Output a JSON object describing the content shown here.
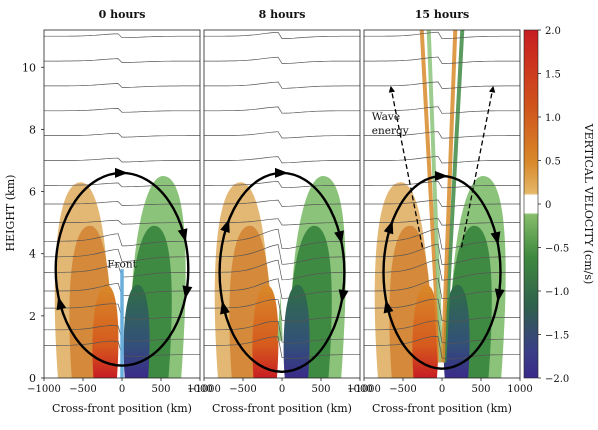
{
  "chart_data": {
    "type": "heatmap",
    "ylabel": "HEIGHT (km)",
    "xlabel": "Cross-front position (km)",
    "xlim": [
      -1000,
      1000
    ],
    "ylim": [
      0,
      11.2
    ],
    "yticks": [
      0,
      2,
      4,
      6,
      8,
      10
    ],
    "xticks": [
      -1000,
      -500,
      0,
      500,
      1000
    ],
    "xtick_labels": [
      "−1000",
      "−500",
      "0",
      "500",
      "1000"
    ],
    "colorbar": {
      "label": "VERTICAL VELOCITY (cm/s)",
      "range": [
        -2.0,
        2.0
      ],
      "ticks": [
        2.0,
        1.5,
        1.0,
        0.5,
        0,
        -0.5,
        -1.0,
        -1.5,
        -2.0
      ],
      "tick_labels": [
        "2.0",
        "1.5",
        "1.0",
        "0.5",
        "0",
        "−0.5",
        "−1.0",
        "−1.5",
        "−2.0"
      ],
      "positive_color": "#c81d22",
      "negative_color": "#3a2a8a",
      "neutral_color": "#ffffff"
    },
    "panels": [
      {
        "title": "0 hours",
        "annotations": [
          {
            "text": "Front",
            "x": 0,
            "y": 3.55
          }
        ],
        "front": {
          "x": 0,
          "y_top": 3.5
        },
        "circulation": {
          "cx": 0,
          "cy": 3.5,
          "rx": 850,
          "ry": 3.1,
          "direction": "clockwise"
        }
      },
      {
        "title": "8 hours",
        "annotations": [],
        "circulation": {
          "cx": 0,
          "cy": 3.4,
          "rx": 800,
          "ry": 3.2,
          "direction": "clockwise"
        }
      },
      {
        "title": "15 hours",
        "annotations": [
          {
            "text": "Wave",
            "x": -900,
            "y": 8.3
          },
          {
            "text": "energy",
            "x": -900,
            "y": 7.85
          }
        ],
        "wave_energy_arrows": [
          {
            "from": [
              -250,
              4.2
            ],
            "to": [
              -650,
              9.3
            ]
          },
          {
            "from": [
              250,
              4.2
            ],
            "to": [
              650,
              9.3
            ]
          }
        ],
        "circulation": {
          "cx": 0,
          "cy": 3.4,
          "rx": 750,
          "ry": 3.1,
          "direction": "clockwise"
        }
      }
    ]
  }
}
